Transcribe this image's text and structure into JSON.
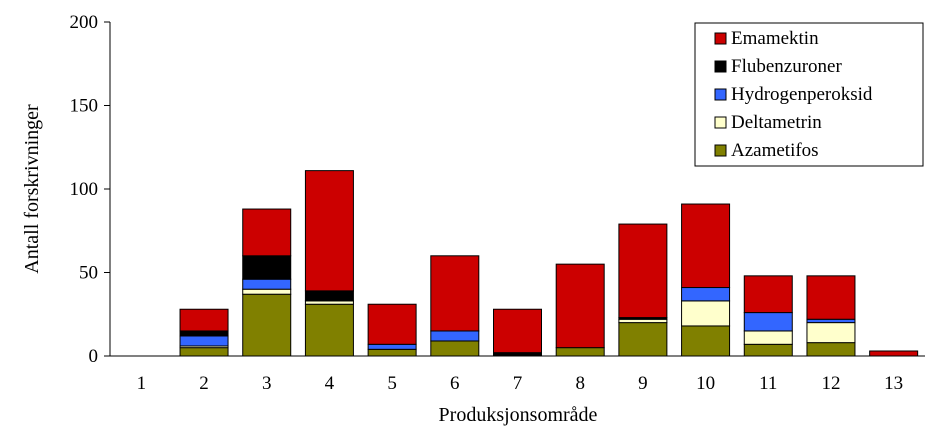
{
  "chart_data": {
    "type": "bar",
    "stacked": true,
    "xlabel": "Produksjonsområde",
    "ylabel": "Antall forskrivninger",
    "ylim": [
      0,
      200
    ],
    "yticks": [
      0,
      50,
      100,
      150,
      200
    ],
    "grid": false,
    "legend_position": "top-right",
    "categories": [
      "1",
      "2",
      "3",
      "4",
      "5",
      "6",
      "7",
      "8",
      "9",
      "10",
      "11",
      "12",
      "13"
    ],
    "series": [
      {
        "name": "Azametifos",
        "color": "#808000",
        "values": [
          0,
          5,
          37,
          31,
          4,
          9,
          0,
          5,
          20,
          18,
          7,
          8,
          0
        ]
      },
      {
        "name": "Deltametrin",
        "color": "#ffffcc",
        "values": [
          0,
          1,
          3,
          2,
          0,
          0,
          0,
          0,
          2,
          15,
          8,
          12,
          0
        ]
      },
      {
        "name": "Hydrogenperoksid",
        "color": "#3366ff",
        "values": [
          0,
          6,
          6,
          0,
          3,
          6,
          0,
          0,
          0,
          8,
          11,
          2,
          0
        ]
      },
      {
        "name": "Flubenzuroner",
        "color": "#000000",
        "values": [
          0,
          3,
          14,
          6,
          0,
          0,
          2,
          0,
          1,
          0,
          0,
          0,
          0
        ]
      },
      {
        "name": "Emamektin",
        "color": "#cc0000",
        "values": [
          0,
          13,
          28,
          72,
          24,
          45,
          26,
          50,
          56,
          50,
          22,
          26,
          3
        ]
      }
    ]
  }
}
